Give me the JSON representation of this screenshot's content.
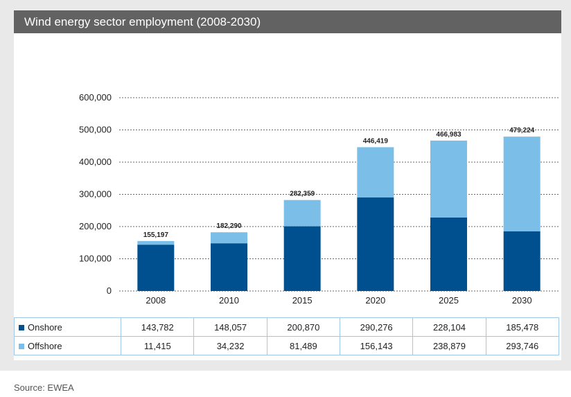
{
  "title": "Wind energy sector employment (2008-2030)",
  "source": "Source: EWEA",
  "colors": {
    "onshore": "#00508f",
    "offshore": "#7bbfe8"
  },
  "chart_data": {
    "type": "bar",
    "stacked": true,
    "title": "Wind energy sector employment (2008-2030)",
    "categories": [
      "2008",
      "2010",
      "2015",
      "2020",
      "2025",
      "2030"
    ],
    "series": [
      {
        "name": "Onshore",
        "values": [
          143782,
          148057,
          200870,
          290276,
          228104,
          185478
        ],
        "labels": [
          "143,782",
          "148,057",
          "200,870",
          "290,276",
          "228,104",
          "185,478"
        ]
      },
      {
        "name": "Offshore",
        "values": [
          11415,
          34232,
          81489,
          156143,
          238879,
          293746
        ],
        "labels": [
          "11,415",
          "34,232",
          "81,489",
          "156,143",
          "238,879",
          "293,746"
        ]
      }
    ],
    "totals": [
      155197,
      182290,
      282359,
      446419,
      466983,
      479224
    ],
    "total_labels": [
      "155,197",
      "182,290",
      "282,359",
      "446,419",
      "466,983",
      "479,224"
    ],
    "ylim": [
      0,
      600000
    ],
    "yticks": [
      0,
      100000,
      200000,
      300000,
      400000,
      500000,
      600000
    ],
    "ytick_labels": [
      "0",
      "100,000",
      "200,000",
      "300,000",
      "400,000",
      "500,000",
      "600,000"
    ],
    "xlabel": "",
    "ylabel": "",
    "grid": true,
    "legend": "table-below"
  }
}
